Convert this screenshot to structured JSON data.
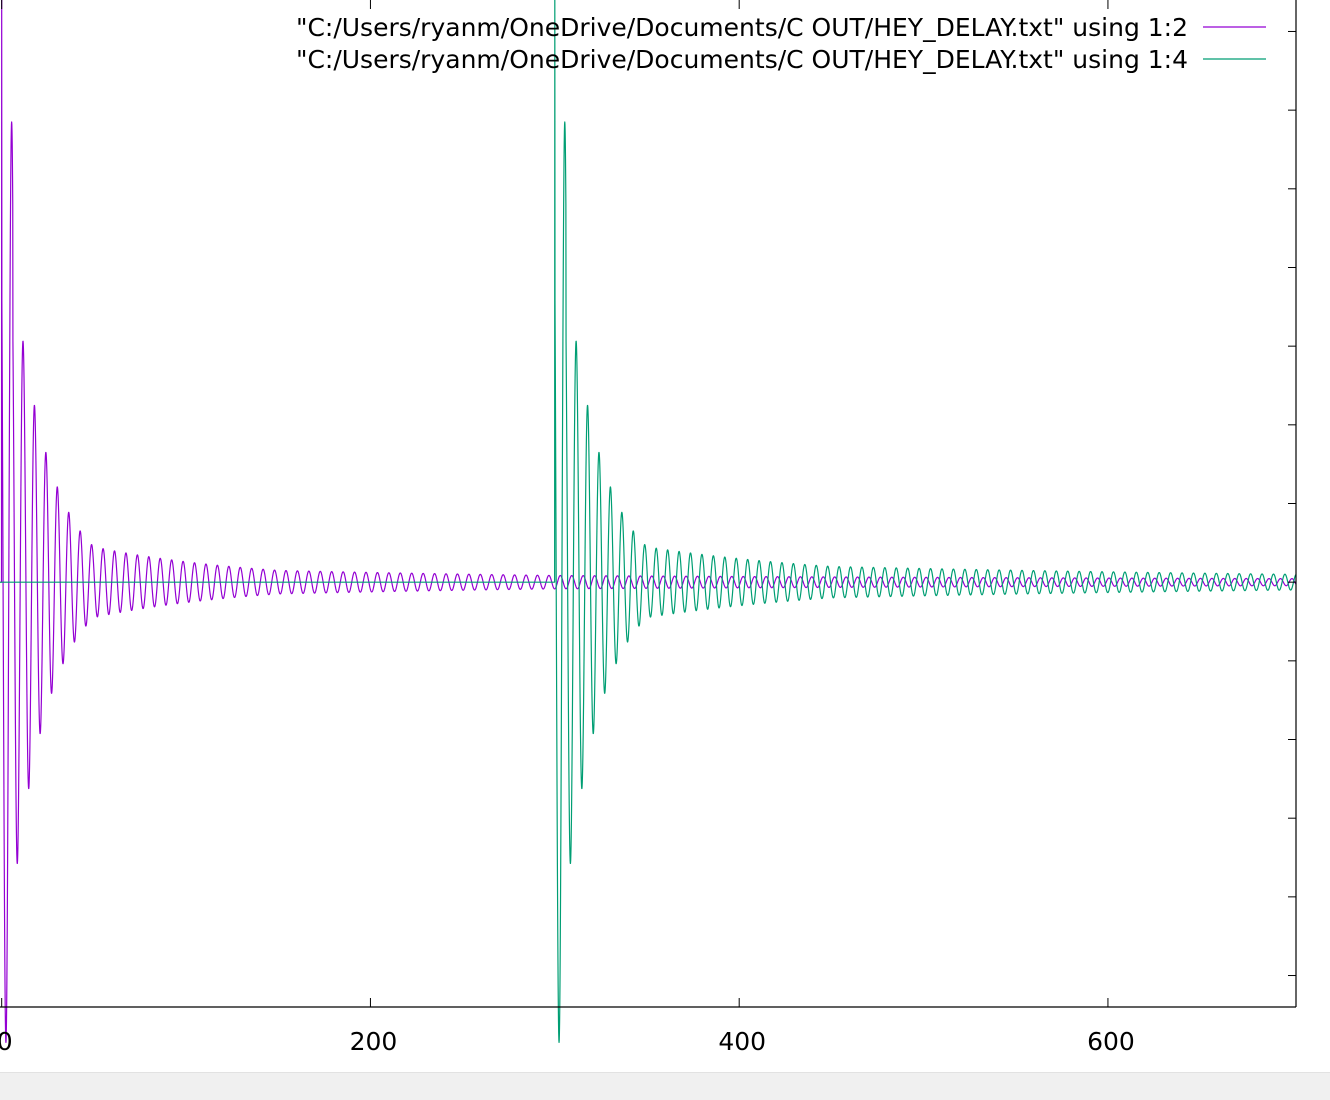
{
  "chart_data": {
    "type": "line",
    "title": "",
    "xlabel": "",
    "ylabel": "",
    "xlim": [
      -2,
      702
    ],
    "ylim": [
      -1.08,
      1.48
    ],
    "x_ticks": [
      0,
      200,
      400,
      600
    ],
    "x_tick_labels": [
      "0",
      "200",
      "400",
      "600"
    ],
    "y_ticks": [
      -1.0,
      -0.8,
      -0.6,
      -0.4,
      -0.2,
      0.0,
      0.2,
      0.4,
      0.6,
      0.8,
      1.0,
      1.2,
      1.4
    ],
    "y_tick_labels": [],
    "grid": false,
    "legend_position": "top-right",
    "series": [
      {
        "name": "\"C:/Users/ryanm/OneDrive/Documents/C OUT/HEY_DELAY.txt\" using 1:2",
        "color": "#9400d3",
        "onset": 0,
        "initial_value": 1.5,
        "notable_points": [
          [
            0,
            1.5
          ],
          [
            2.3,
            -1.17
          ],
          [
            6,
            0.81
          ],
          [
            8.8,
            -0.54
          ],
          [
            12,
            0.4
          ],
          [
            18,
            0.23
          ]
        ],
        "approx_period": 6.2,
        "approx_envelope_at": [
          [
            6,
            0.81
          ],
          [
            50,
            0.09
          ],
          [
            150,
            0.03
          ],
          [
            300,
            0.017
          ],
          [
            700,
            0.009
          ]
        ],
        "final_value": 0
      },
      {
        "name": "\"C:/Users/ryanm/OneDrive/Documents/C OUT/HEY_DELAY.txt\" using 1:4",
        "color": "#009e73",
        "onset": 300,
        "initial_value": 1.5,
        "notable_points": [
          [
            300,
            1.5
          ],
          [
            302.3,
            -1.17
          ],
          [
            306,
            0.81
          ],
          [
            308.8,
            -0.54
          ],
          [
            312,
            0.4
          ],
          [
            318,
            0.23
          ]
        ],
        "approx_period": 6.2,
        "approx_envelope_at": [
          [
            306,
            0.81
          ],
          [
            350,
            0.09
          ],
          [
            450,
            0.04
          ],
          [
            700,
            0.02
          ]
        ],
        "final_value": 0
      }
    ]
  }
}
